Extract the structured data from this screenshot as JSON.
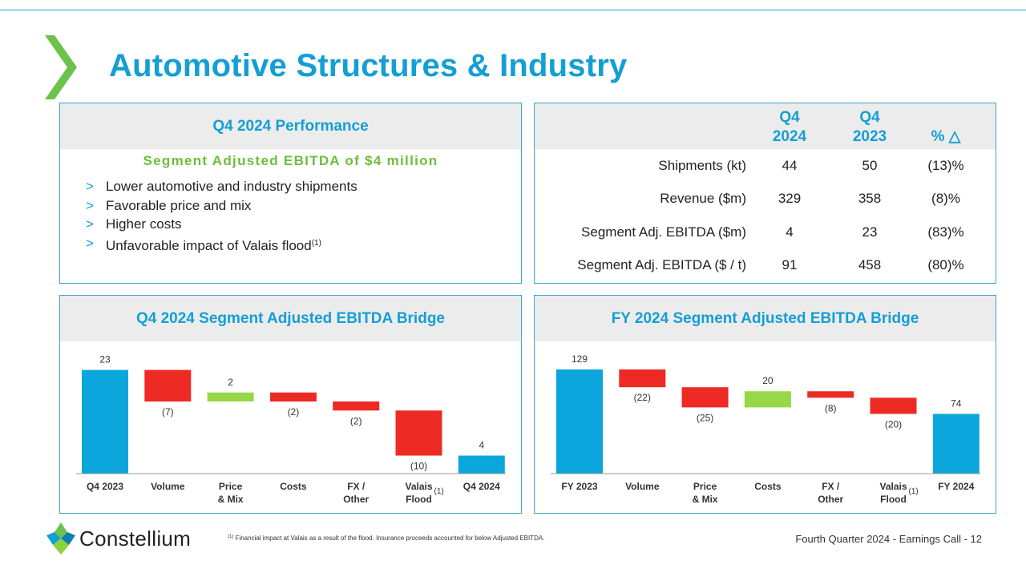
{
  "title": "Automotive Structures & Industry",
  "performance": {
    "header": "Q4 2024 Performance",
    "subheading": "Segment Adjusted EBITDA of $4 million",
    "bullet_marker": ">",
    "bullets": [
      "Lower automotive and industry shipments",
      "Favorable price and mix",
      "Higher costs",
      "Unfavorable impact of Valais flood"
    ],
    "bullet_footnote": "(1)"
  },
  "metrics": {
    "col1": [
      "Q4",
      "2024"
    ],
    "col2": [
      "Q4",
      "2023"
    ],
    "col3": "% △",
    "rows": [
      {
        "label": "Shipments (kt)",
        "q4_2024": "44",
        "q4_2023": "50",
        "change": "(13)%"
      },
      {
        "label": "Revenue ($m)",
        "q4_2024": "329",
        "q4_2023": "358",
        "change": "(8)%"
      },
      {
        "label": "Segment Adj. EBITDA  ($m)",
        "q4_2024": "4",
        "q4_2023": "23",
        "change": "(83)%"
      },
      {
        "label": "Segment Adj. EBITDA ($ / t)",
        "q4_2024": "91",
        "q4_2023": "458",
        "change": "(80)%"
      }
    ]
  },
  "colors": {
    "accent": "#149fd4",
    "green": "#96d848",
    "red": "#ee2a24",
    "bar_blue": "#0aa6dc"
  },
  "chart_data": [
    {
      "type": "waterfall",
      "title": "Q4 2024 Segment Adjusted EBITDA Bridge",
      "ylim": [
        0,
        24
      ],
      "steps": [
        {
          "label": [
            "Q4 2023"
          ],
          "kind": "total",
          "value": 23,
          "display": "23"
        },
        {
          "label": [
            "Volume"
          ],
          "kind": "delta",
          "value": -7,
          "display": "(7)"
        },
        {
          "label": [
            "Price",
            "& Mix"
          ],
          "kind": "delta",
          "value": 2,
          "display": "2"
        },
        {
          "label": [
            "Costs"
          ],
          "kind": "delta",
          "value": -2,
          "display": "(2)"
        },
        {
          "label": [
            "FX /",
            "Other"
          ],
          "kind": "delta",
          "value": -2,
          "display": "(2)"
        },
        {
          "label": [
            "Valais",
            "Flood"
          ],
          "kind": "delta",
          "value": -10,
          "display": "(10)",
          "footnote": "(1)"
        },
        {
          "label": [
            "Q4 2024"
          ],
          "kind": "total",
          "value": 4,
          "display": "4"
        }
      ]
    },
    {
      "type": "waterfall",
      "title": "FY 2024 Segment Adjusted EBITDA Bridge",
      "ylim": [
        0,
        134
      ],
      "steps": [
        {
          "label": [
            "FY 2023"
          ],
          "kind": "total",
          "value": 129,
          "display": "129"
        },
        {
          "label": [
            "Volume"
          ],
          "kind": "delta",
          "value": -22,
          "display": "(22)"
        },
        {
          "label": [
            "Price",
            "& Mix"
          ],
          "kind": "delta",
          "value": -25,
          "display": "(25)"
        },
        {
          "label": [
            "Costs"
          ],
          "kind": "delta",
          "value": 20,
          "display": "20"
        },
        {
          "label": [
            "FX /",
            "Other"
          ],
          "kind": "delta",
          "value": -8,
          "display": "(8)"
        },
        {
          "label": [
            "Valais",
            "Flood"
          ],
          "kind": "delta",
          "value": -20,
          "display": "(20)",
          "footnote": "(1)"
        },
        {
          "label": [
            "FY 2024"
          ],
          "kind": "total",
          "value": 74,
          "display": "74"
        }
      ]
    }
  ],
  "footer": {
    "logo_text": "Constellium",
    "footnote_mark": "(1)",
    "footnote": " Financial impact at Valais as a result of the flood. Insurance proceeds accounted for below Adjusted EBITDA.",
    "page_info": "Fourth Quarter 2024 -  Earnings Call - 12"
  }
}
